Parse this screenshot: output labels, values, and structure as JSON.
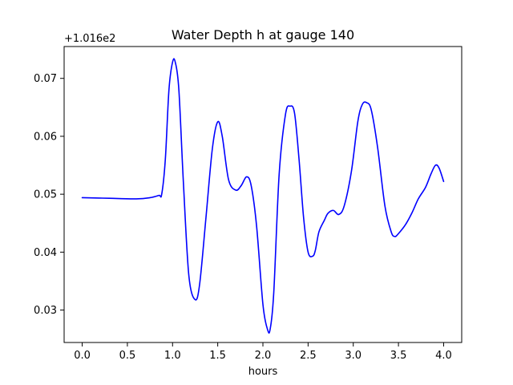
{
  "chart_data": {
    "type": "line",
    "title": "Water Depth h at gauge 140",
    "xlabel": "hours",
    "ylabel": "",
    "offset_text": "+1.016e2",
    "y_offset": 101.6,
    "xlim": [
      -0.2,
      4.2
    ],
    "ylim": [
      0.0244,
      0.0755
    ],
    "x_ticks": [
      0.0,
      0.5,
      1.0,
      1.5,
      2.0,
      2.5,
      3.0,
      3.5,
      4.0
    ],
    "x_tick_labels": [
      "0.0",
      "0.5",
      "1.0",
      "1.5",
      "2.0",
      "2.5",
      "3.0",
      "3.5",
      "4.0"
    ],
    "y_ticks": [
      0.03,
      0.04,
      0.05,
      0.06,
      0.07
    ],
    "y_tick_labels": [
      "0.03",
      "0.04",
      "0.05",
      "0.06",
      "0.07"
    ],
    "grid": false,
    "colors": {
      "line": "#0000ff",
      "axes": "#000000",
      "background": "#ffffff"
    },
    "series": [
      {
        "x": [
          0.0,
          0.3,
          0.6,
          0.75,
          0.85,
          0.88,
          0.92,
          0.96,
          1.0,
          1.03,
          1.07,
          1.12,
          1.18,
          1.25,
          1.3,
          1.37,
          1.44,
          1.5,
          1.55,
          1.62,
          1.7,
          1.76,
          1.82,
          1.87,
          1.93,
          2.0,
          2.05,
          2.08,
          2.12,
          2.18,
          2.25,
          2.3,
          2.35,
          2.4,
          2.45,
          2.5,
          2.55,
          2.58,
          2.62,
          2.68,
          2.72,
          2.78,
          2.84,
          2.9,
          2.98,
          3.05,
          3.1,
          3.15,
          3.2,
          3.27,
          3.35,
          3.42,
          3.46,
          3.5,
          3.58,
          3.65,
          3.72,
          3.8,
          3.86,
          3.91,
          3.95,
          4.0
        ],
        "y": [
          0.0494,
          0.0493,
          0.0492,
          0.0494,
          0.0498,
          0.05,
          0.056,
          0.068,
          0.0728,
          0.0728,
          0.068,
          0.052,
          0.036,
          0.0318,
          0.0345,
          0.046,
          0.0578,
          0.0625,
          0.06,
          0.0525,
          0.0507,
          0.0515,
          0.053,
          0.0515,
          0.0445,
          0.031,
          0.0267,
          0.0267,
          0.033,
          0.0535,
          0.0638,
          0.0652,
          0.064,
          0.056,
          0.046,
          0.04,
          0.0393,
          0.0403,
          0.0435,
          0.0455,
          0.0467,
          0.0472,
          0.0465,
          0.048,
          0.054,
          0.0625,
          0.0655,
          0.0658,
          0.0645,
          0.058,
          0.048,
          0.0435,
          0.0427,
          0.0432,
          0.0448,
          0.0468,
          0.0492,
          0.0512,
          0.0535,
          0.055,
          0.0545,
          0.0522
        ]
      }
    ]
  }
}
